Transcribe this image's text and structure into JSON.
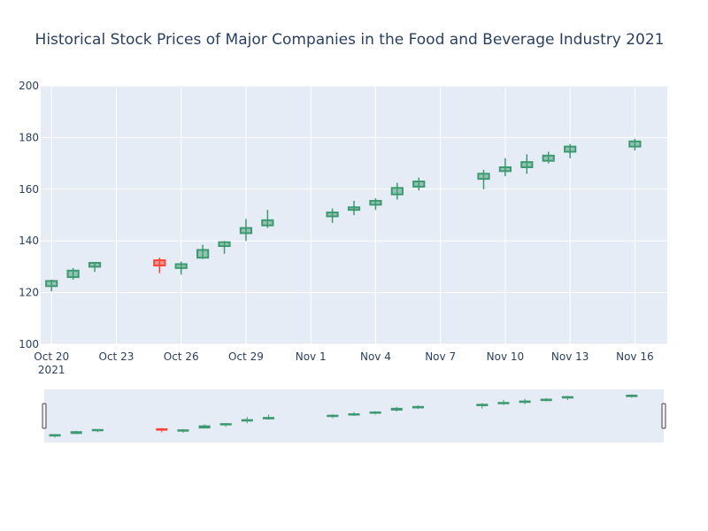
{
  "chart_data": {
    "type": "candlestick",
    "title": "Historical Stock Prices of Major Companies in the Food and Beverage Industry 2021",
    "xlabel": "",
    "ylabel": "",
    "ylim": [
      100,
      200
    ],
    "yticks": [
      100,
      120,
      140,
      160,
      180,
      200
    ],
    "xlim": [
      "2021-10-19T12:00",
      "2021-11-17T12:00"
    ],
    "xticks": [
      {
        "date": "2021-10-20",
        "label": "Oct 20",
        "sublabel": "2021"
      },
      {
        "date": "2021-10-23",
        "label": "Oct 23"
      },
      {
        "date": "2021-10-26",
        "label": "Oct 26"
      },
      {
        "date": "2021-10-29",
        "label": "Oct 29"
      },
      {
        "date": "2021-11-01",
        "label": "Nov 1"
      },
      {
        "date": "2021-11-04",
        "label": "Nov 4"
      },
      {
        "date": "2021-11-07",
        "label": "Nov 7"
      },
      {
        "date": "2021-11-10",
        "label": "Nov 10"
      },
      {
        "date": "2021-11-13",
        "label": "Nov 13"
      },
      {
        "date": "2021-11-16",
        "label": "Nov 16"
      }
    ],
    "grid": true,
    "rangeslider": true,
    "colors": {
      "increasing": "#3d9970",
      "decreasing": "#ff4136",
      "plot_bg": "#e5ecf6",
      "text": "#2a3f5f"
    },
    "series": [
      {
        "date": "2021-10-20",
        "open": 122.5,
        "high": 125,
        "low": 120.5,
        "close": 124.5
      },
      {
        "date": "2021-10-21",
        "open": 126,
        "high": 129.5,
        "low": 125,
        "close": 128.5
      },
      {
        "date": "2021-10-22",
        "open": 130,
        "high": 131.5,
        "low": 128,
        "close": 131.5
      },
      {
        "date": "2021-10-25",
        "open": 132.5,
        "high": 133.5,
        "low": 127.5,
        "close": 130.5
      },
      {
        "date": "2021-10-26",
        "open": 129.5,
        "high": 132,
        "low": 127,
        "close": 131
      },
      {
        "date": "2021-10-27",
        "open": 133.5,
        "high": 138.5,
        "low": 133,
        "close": 136.5
      },
      {
        "date": "2021-10-28",
        "open": 138,
        "high": 140,
        "low": 135,
        "close": 139.5
      },
      {
        "date": "2021-10-29",
        "open": 143,
        "high": 148.5,
        "low": 140,
        "close": 145
      },
      {
        "date": "2021-10-30",
        "open": 146,
        "high": 152,
        "low": 145,
        "close": 148
      },
      {
        "date": "2021-11-02",
        "open": 149.5,
        "high": 152.5,
        "low": 147,
        "close": 151
      },
      {
        "date": "2021-11-03",
        "open": 152,
        "high": 155.5,
        "low": 150,
        "close": 153
      },
      {
        "date": "2021-11-04",
        "open": 154,
        "high": 156.5,
        "low": 152,
        "close": 155.5
      },
      {
        "date": "2021-11-05",
        "open": 158,
        "high": 162.5,
        "low": 156,
        "close": 160.5
      },
      {
        "date": "2021-11-06",
        "open": 161,
        "high": 164.5,
        "low": 159.5,
        "close": 163
      },
      {
        "date": "2021-11-09",
        "open": 164,
        "high": 167.5,
        "low": 160,
        "close": 166
      },
      {
        "date": "2021-11-10",
        "open": 167,
        "high": 172,
        "low": 165,
        "close": 168.5
      },
      {
        "date": "2021-11-11",
        "open": 168.5,
        "high": 173.5,
        "low": 166,
        "close": 170.5
      },
      {
        "date": "2021-11-12",
        "open": 171,
        "high": 174.5,
        "low": 170,
        "close": 173
      },
      {
        "date": "2021-11-13",
        "open": 174.5,
        "high": 177.5,
        "low": 172,
        "close": 176.5
      },
      {
        "date": "2021-11-16",
        "open": 176.5,
        "high": 179.5,
        "low": 175,
        "close": 178.5
      }
    ]
  }
}
